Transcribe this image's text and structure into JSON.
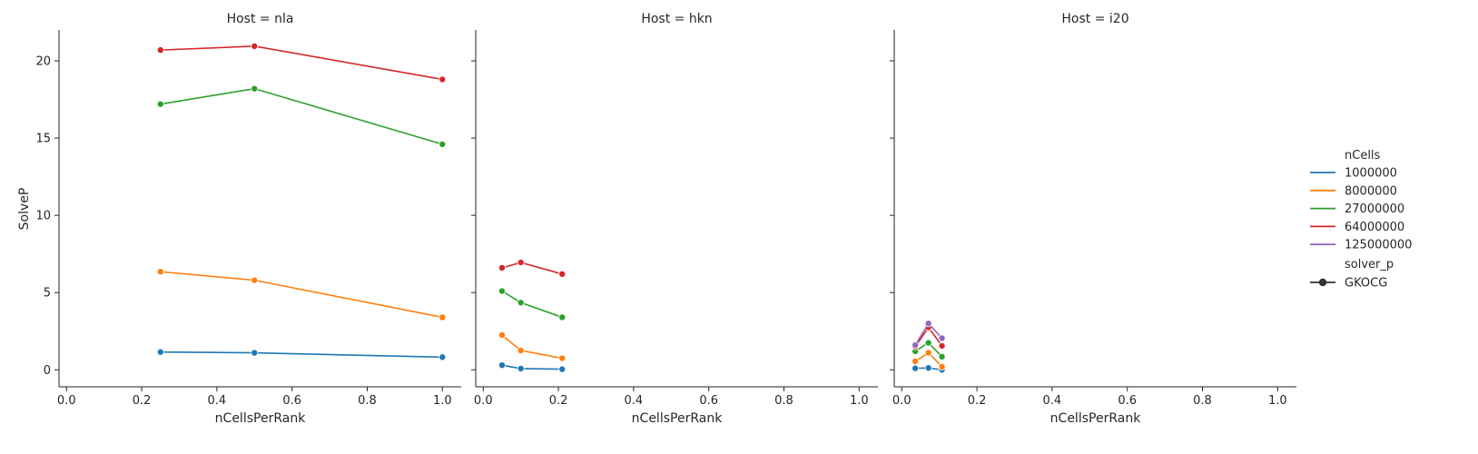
{
  "chart_data": {
    "type": "line",
    "y_label": "SolveP",
    "x_label": "nCellsPerRank",
    "xlim": [
      -0.02,
      1.05
    ],
    "ylim": [
      -1.1,
      22.0
    ],
    "x_ticks": [
      "0.0",
      "0.2",
      "0.4",
      "0.6",
      "0.8",
      "1.0"
    ],
    "x_tick_values": [
      0.0,
      0.2,
      0.4,
      0.6,
      0.8,
      1.0
    ],
    "y_ticks": [
      "0",
      "5",
      "10",
      "15",
      "20"
    ],
    "y_tick_values": [
      0,
      5,
      10,
      15,
      20
    ],
    "colors": {
      "1000000": "#1f77b4",
      "8000000": "#ff7f0e",
      "27000000": "#2ca02c",
      "64000000": "#d62728",
      "125000000": "#9467bd"
    },
    "panels": [
      {
        "title": "Host = nla",
        "series": [
          {
            "name": "1000000",
            "x": [
              0.25,
              0.5,
              1.0
            ],
            "y": [
              1.15,
              1.1,
              0.82
            ]
          },
          {
            "name": "8000000",
            "x": [
              0.25,
              0.5,
              1.0
            ],
            "y": [
              6.35,
              5.8,
              3.4
            ]
          },
          {
            "name": "27000000",
            "x": [
              0.25,
              0.5,
              1.0
            ],
            "y": [
              17.2,
              18.2,
              14.6
            ]
          },
          {
            "name": "64000000",
            "x": [
              0.25,
              0.5,
              1.0
            ],
            "y": [
              20.7,
              20.95,
              18.8
            ]
          }
        ]
      },
      {
        "title": "Host = hkn",
        "series": [
          {
            "name": "1000000",
            "x": [
              0.05,
              0.1,
              0.21
            ],
            "y": [
              0.3,
              0.08,
              0.04
            ]
          },
          {
            "name": "8000000",
            "x": [
              0.05,
              0.1,
              0.21
            ],
            "y": [
              2.25,
              1.25,
              0.75
            ]
          },
          {
            "name": "27000000",
            "x": [
              0.05,
              0.1,
              0.21
            ],
            "y": [
              5.1,
              4.35,
              3.4
            ]
          },
          {
            "name": "64000000",
            "x": [
              0.05,
              0.1,
              0.21
            ],
            "y": [
              6.6,
              6.95,
              6.2
            ]
          }
        ]
      },
      {
        "title": "Host = i20",
        "series": [
          {
            "name": "1000000",
            "x": [
              0.036,
              0.071,
              0.107
            ],
            "y": [
              0.1,
              0.12,
              0.0
            ]
          },
          {
            "name": "8000000",
            "x": [
              0.036,
              0.071,
              0.107
            ],
            "y": [
              0.55,
              1.1,
              0.2
            ]
          },
          {
            "name": "27000000",
            "x": [
              0.036,
              0.071,
              0.107
            ],
            "y": [
              1.2,
              1.75,
              0.85
            ]
          },
          {
            "name": "64000000",
            "x": [
              0.036,
              0.071,
              0.107
            ],
            "y": [
              1.5,
              2.75,
              1.55
            ]
          },
          {
            "name": "125000000",
            "x": [
              0.036,
              0.071,
              0.107
            ],
            "y": [
              1.6,
              3.0,
              2.05
            ]
          }
        ]
      }
    ],
    "legend": {
      "title": "nCells",
      "entries": [
        "1000000",
        "8000000",
        "27000000",
        "64000000",
        "125000000"
      ],
      "style_title": "solver_p",
      "style_entries": [
        "GKOCG"
      ],
      "placement": "right"
    }
  }
}
